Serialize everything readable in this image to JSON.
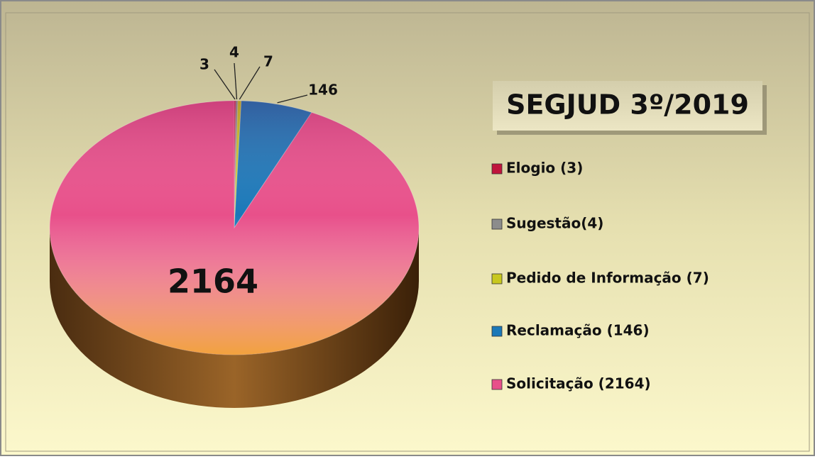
{
  "chart_data": {
    "type": "pie",
    "title": "SEGJUD 3º/2019",
    "categories": [
      "Elogio (3)",
      "Sugestão(4)",
      "Pedido de Informação (7)",
      "Reclamação (146)",
      "Solicitação (2164)"
    ],
    "values": [
      3,
      4,
      7,
      146,
      2164
    ],
    "colors": [
      "#c0143c",
      "#8c8c8c",
      "#c8c81e",
      "#1a78b8",
      "#e8508a"
    ]
  }
}
